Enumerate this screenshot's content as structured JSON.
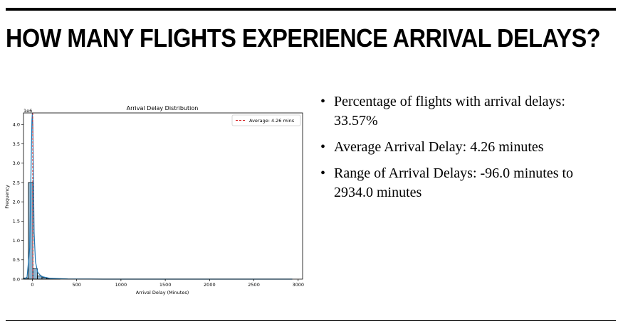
{
  "slide": {
    "title": "HOW MANY FLIGHTS EXPERIENCE ARRIVAL DELAYS?",
    "bullets": [
      "Percentage of flights with arrival delays: 33.57%",
      "Average Arrival Delay: 4.26 minutes",
      "Range of Arrival Delays: -96.0 minutes to 2934.0 minutes"
    ]
  },
  "chart_data": {
    "type": "bar",
    "title": "Arrival Delay Distribution",
    "xlabel": "Arrival Delay (Minutes)",
    "ylabel": "Frequency",
    "y_multiplier": "1e6",
    "xlim": [
      -100,
      3050
    ],
    "ylim": [
      0,
      4.3
    ],
    "xticks": [
      0,
      500,
      1000,
      1500,
      2000,
      2500,
      3000
    ],
    "yticks": [
      0.0,
      0.5,
      1.0,
      1.5,
      2.0,
      2.5,
      3.0,
      3.5,
      4.0
    ],
    "bins": [
      {
        "x0": -96,
        "x1": -45,
        "value": 0.03
      },
      {
        "x0": -45,
        "x1": 6,
        "value": 2.5
      },
      {
        "x0": 6,
        "x1": 57,
        "value": 0.27
      },
      {
        "x0": 57,
        "x1": 108,
        "value": 0.08
      },
      {
        "x0": 108,
        "x1": 159,
        "value": 0.04
      },
      {
        "x0": 159,
        "x1": 210,
        "value": 0.02
      },
      {
        "x0": 210,
        "x1": 261,
        "value": 0.01
      },
      {
        "x0": 261,
        "x1": 312,
        "value": 0.005
      }
    ],
    "kde": [
      [
        -96,
        0.0
      ],
      [
        -60,
        0.05
      ],
      [
        -30,
        0.8
      ],
      [
        -15,
        2.8
      ],
      [
        -5,
        4.1
      ],
      [
        0,
        4.3
      ],
      [
        5,
        4.0
      ],
      [
        12,
        2.6
      ],
      [
        20,
        1.2
      ],
      [
        35,
        0.45
      ],
      [
        60,
        0.18
      ],
      [
        100,
        0.07
      ],
      [
        200,
        0.02
      ],
      [
        400,
        0.005
      ],
      [
        800,
        0.0
      ],
      [
        2934,
        0.0
      ]
    ],
    "average_line": {
      "x": 4.26,
      "label": "Average: 4.26 mins",
      "color": "#d62728"
    },
    "bar_color": "#6a9dc2",
    "kde_color": "#1f77b4",
    "legend_position": "top-right"
  }
}
